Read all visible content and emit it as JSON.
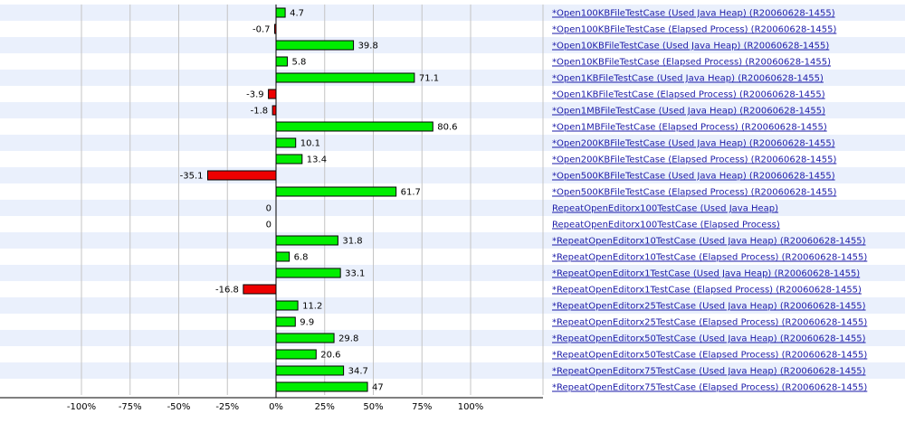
{
  "chart_data": {
    "type": "bar",
    "orientation": "horizontal",
    "xlim": [
      -100,
      100
    ],
    "grid": true,
    "colors": {
      "positive": "#00ee00",
      "negative": "#ee0000",
      "stripe": "#eaf0fc",
      "link": "#1a1aa8",
      "grid": "#c4c4c4"
    },
    "xticks": [
      "-100%",
      "-75%",
      "-50%",
      "-25%",
      "0%",
      "25%",
      "50%",
      "75%",
      "100%"
    ],
    "tick_values": [
      -100,
      -75,
      -50,
      -25,
      0,
      25,
      50,
      75,
      100
    ],
    "categories": [
      "*Open100KBFileTestCase (Used Java Heap) (R20060628-1455)",
      "*Open100KBFileTestCase (Elapsed Process) (R20060628-1455)",
      "*Open10KBFileTestCase (Used Java Heap) (R20060628-1455)",
      "*Open10KBFileTestCase (Elapsed Process) (R20060628-1455)",
      "*Open1KBFileTestCase (Used Java Heap) (R20060628-1455)",
      "*Open1KBFileTestCase (Elapsed Process) (R20060628-1455)",
      "*Open1MBFileTestCase (Used Java Heap) (R20060628-1455)",
      "*Open1MBFileTestCase (Elapsed Process) (R20060628-1455)",
      "*Open200KBFileTestCase (Used Java Heap) (R20060628-1455)",
      "*Open200KBFileTestCase (Elapsed Process) (R20060628-1455)",
      "*Open500KBFileTestCase (Used Java Heap) (R20060628-1455)",
      "*Open500KBFileTestCase (Elapsed Process) (R20060628-1455)",
      "RepeatOpenEditorx100TestCase (Used Java Heap)",
      "RepeatOpenEditorx100TestCase (Elapsed Process)",
      "*RepeatOpenEditorx10TestCase (Used Java Heap) (R20060628-1455)",
      "*RepeatOpenEditorx10TestCase (Elapsed Process) (R20060628-1455)",
      "*RepeatOpenEditorx1TestCase (Used Java Heap) (R20060628-1455)",
      "*RepeatOpenEditorx1TestCase (Elapsed Process) (R20060628-1455)",
      "*RepeatOpenEditorx25TestCase (Used Java Heap) (R20060628-1455)",
      "*RepeatOpenEditorx25TestCase (Elapsed Process) (R20060628-1455)",
      "*RepeatOpenEditorx50TestCase (Used Java Heap) (R20060628-1455)",
      "*RepeatOpenEditorx50TestCase (Elapsed Process) (R20060628-1455)",
      "*RepeatOpenEditorx75TestCase (Used Java Heap) (R20060628-1455)",
      "*RepeatOpenEditorx75TestCase (Elapsed Process) (R20060628-1455)"
    ],
    "values": [
      4.7,
      -0.7,
      39.8,
      5.8,
      71.1,
      -3.9,
      -1.8,
      80.6,
      10.1,
      13.4,
      -35.1,
      61.7,
      0,
      0,
      31.8,
      6.8,
      33.1,
      -16.8,
      11.2,
      9.9,
      29.8,
      20.6,
      34.7,
      47
    ]
  }
}
